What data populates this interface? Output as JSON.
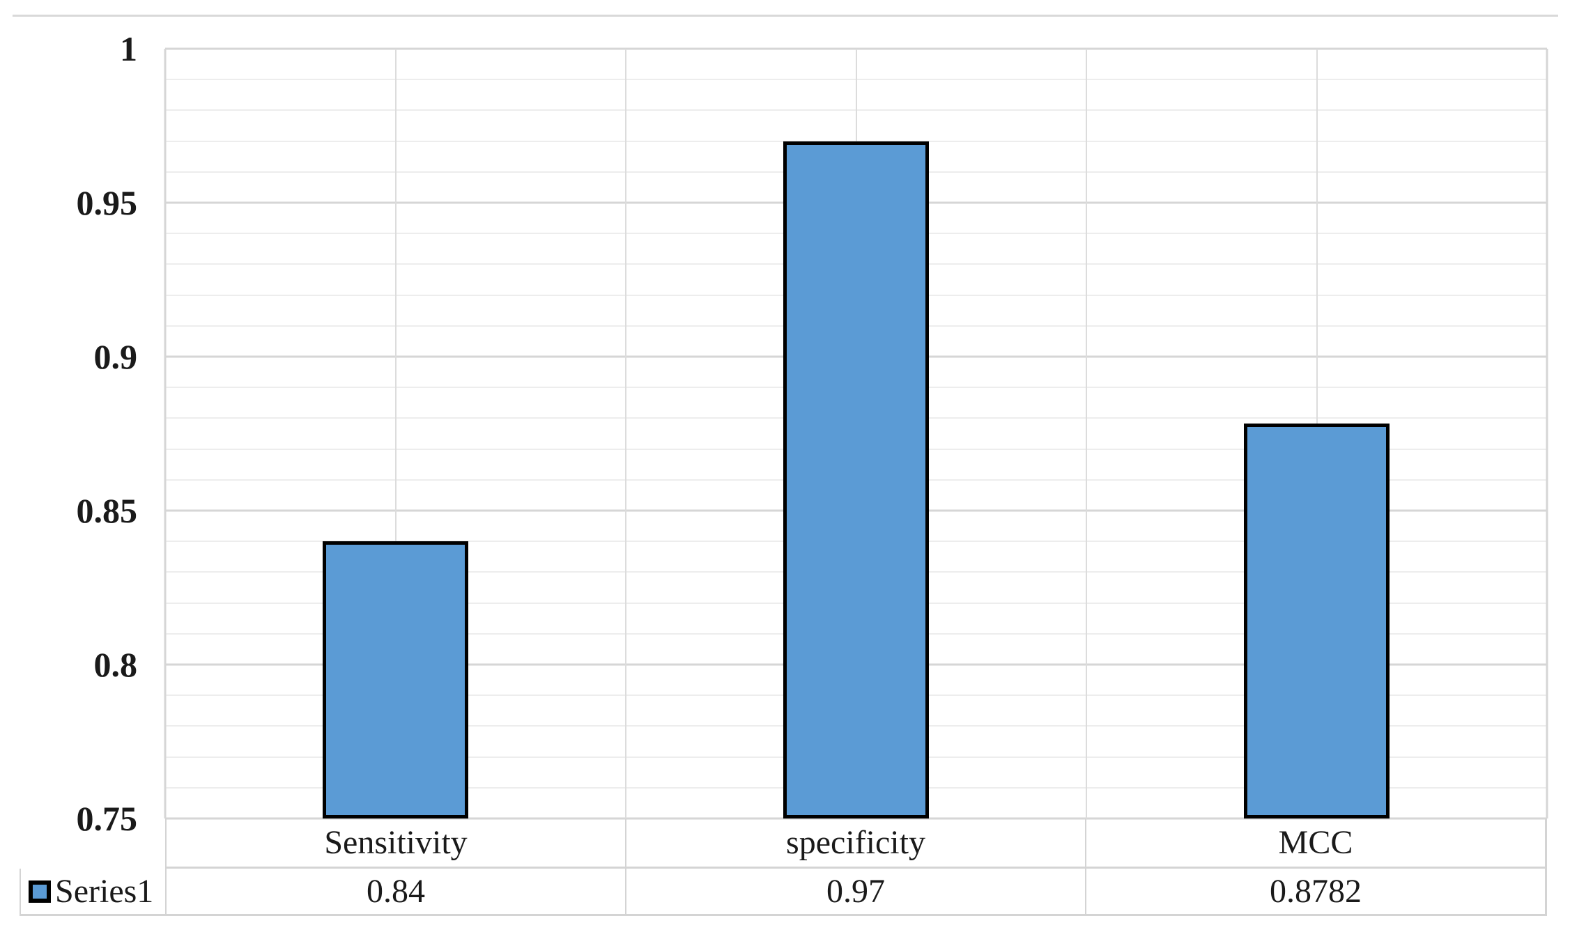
{
  "chart_data": {
    "type": "bar",
    "title": "",
    "xlabel": "",
    "ylabel": "",
    "categories": [
      "Sensitivity",
      "specificity",
      "MCC"
    ],
    "series": [
      {
        "name": "Series1",
        "values": [
          0.84,
          0.97,
          0.8782
        ],
        "value_labels": [
          "0.84",
          "0.97",
          "0.8782"
        ]
      }
    ],
    "ylim": [
      0.75,
      1
    ],
    "y_major_step": 0.05,
    "y_minor_step": 0.01,
    "y_ticks": [
      {
        "value": 1,
        "label": "1"
      },
      {
        "value": 0.95,
        "label": "0.95"
      },
      {
        "value": 0.9,
        "label": "0.9"
      },
      {
        "value": 0.85,
        "label": "0.85"
      },
      {
        "value": 0.8,
        "label": "0.8"
      },
      {
        "value": 0.75,
        "label": "0.75"
      }
    ],
    "grid": "major-and-minor",
    "legend_position": "bottom-left-table-cell",
    "colors": {
      "bar_fill": "#5B9BD5",
      "bar_border": "#000000",
      "major_grid": "#D6D6D6",
      "minor_grid": "#EDEDED",
      "table_border": "#D4D4D4",
      "text": "#1A1A1A"
    }
  }
}
